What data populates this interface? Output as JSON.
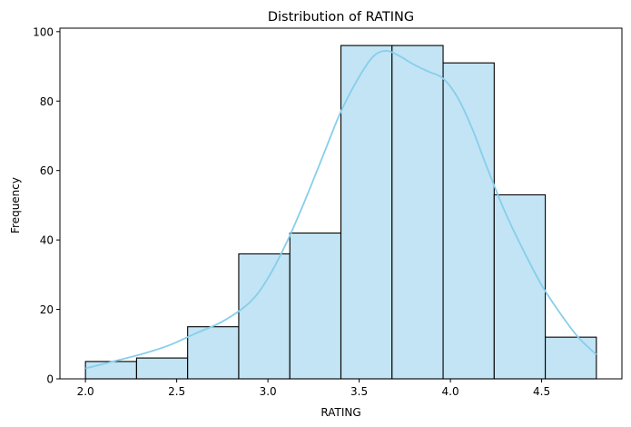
{
  "chart_data": {
    "type": "histogram",
    "title": "Distribution of RATING",
    "xlabel": "RATING",
    "ylabel": "Frequency",
    "xlim": [
      1.86,
      4.94
    ],
    "ylim": [
      0,
      101
    ],
    "x_ticks": [
      2.0,
      2.5,
      3.0,
      3.5,
      4.0,
      4.5
    ],
    "x_tick_labels": [
      "2.0",
      "2.5",
      "3.0",
      "3.5",
      "4.0",
      "4.5"
    ],
    "y_ticks": [
      0,
      20,
      40,
      60,
      80,
      100
    ],
    "y_tick_labels": [
      "0",
      "20",
      "40",
      "60",
      "80",
      "100"
    ],
    "bins": [
      {
        "x0": 2.0,
        "x1": 2.28,
        "count": 5
      },
      {
        "x0": 2.28,
        "x1": 2.56,
        "count": 6
      },
      {
        "x0": 2.56,
        "x1": 2.84,
        "count": 15
      },
      {
        "x0": 2.84,
        "x1": 3.12,
        "count": 36
      },
      {
        "x0": 3.12,
        "x1": 3.4,
        "count": 42
      },
      {
        "x0": 3.4,
        "x1": 3.68,
        "count": 96
      },
      {
        "x0": 3.68,
        "x1": 3.96,
        "count": 96
      },
      {
        "x0": 3.96,
        "x1": 4.24,
        "count": 91
      },
      {
        "x0": 4.24,
        "x1": 4.52,
        "count": 53
      },
      {
        "x0": 4.52,
        "x1": 4.8,
        "count": 12
      }
    ],
    "kde": {
      "x": [
        2.0,
        2.15,
        2.3,
        2.45,
        2.6,
        2.75,
        2.9,
        3.0,
        3.1,
        3.2,
        3.3,
        3.4,
        3.5,
        3.58,
        3.65,
        3.72,
        3.8,
        3.88,
        3.96,
        4.04,
        4.12,
        4.2,
        4.3,
        4.4,
        4.5,
        4.6,
        4.7,
        4.8
      ],
      "y": [
        3,
        5,
        7,
        9.5,
        13,
        16.5,
        22,
        29,
        39,
        51,
        64,
        77,
        87,
        93,
        94.5,
        93,
        90.5,
        88.5,
        86.5,
        81,
        72,
        61,
        48,
        37,
        27,
        19,
        12,
        7
      ]
    },
    "colors": {
      "bar_fill": "#c2e4f4",
      "bar_edge": "#000000",
      "kde_line": "#87ceeb"
    },
    "grid": false
  }
}
